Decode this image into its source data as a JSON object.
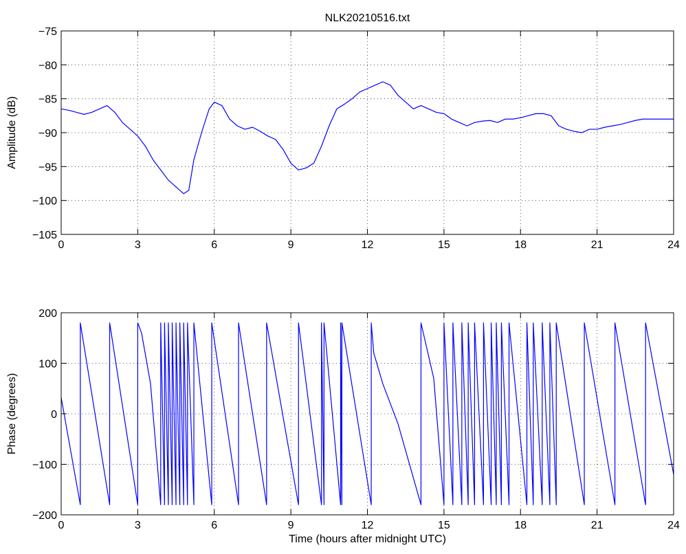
{
  "chart_data": [
    {
      "type": "line",
      "title": "NLK20210516.txt",
      "xlabel": "",
      "ylabel": "Amplitude (dB)",
      "xlim": [
        0,
        24
      ],
      "ylim": [
        -105,
        -75
      ],
      "xticks": [
        0,
        3,
        6,
        9,
        12,
        15,
        18,
        21,
        24
      ],
      "yticks": [
        -75,
        -80,
        -85,
        -90,
        -95,
        -100,
        -105
      ],
      "grid": true,
      "series": [
        {
          "color": "#0000ff",
          "x": [
            0,
            0.3,
            0.6,
            0.9,
            1.2,
            1.5,
            1.8,
            2.1,
            2.4,
            2.7,
            3.0,
            3.3,
            3.6,
            3.9,
            4.2,
            4.5,
            4.8,
            5.0,
            5.2,
            5.5,
            5.8,
            6.0,
            6.3,
            6.6,
            6.9,
            7.2,
            7.5,
            7.8,
            8.1,
            8.4,
            8.7,
            9.0,
            9.3,
            9.6,
            9.9,
            10.2,
            10.5,
            10.8,
            11.1,
            11.4,
            11.7,
            12.0,
            12.3,
            12.6,
            12.9,
            13.2,
            13.5,
            13.8,
            14.1,
            14.4,
            14.7,
            15.0,
            15.3,
            15.6,
            15.9,
            16.2,
            16.5,
            16.8,
            17.1,
            17.4,
            17.7,
            18.0,
            18.3,
            18.6,
            18.9,
            19.2,
            19.5,
            19.8,
            20.1,
            20.4,
            20.7,
            21.0,
            21.3,
            21.6,
            21.9,
            22.2,
            22.5,
            22.8,
            23.1,
            23.4,
            23.7,
            24.0
          ],
          "y": [
            -86.5,
            -86.7,
            -87.0,
            -87.3,
            -87.0,
            -86.5,
            -86.0,
            -87.0,
            -88.5,
            -89.5,
            -90.5,
            -92.0,
            -94.0,
            -95.5,
            -97.0,
            -98.0,
            -99.0,
            -98.5,
            -94.0,
            -90.0,
            -86.5,
            -85.5,
            -86.0,
            -88.0,
            -89.0,
            -89.5,
            -89.2,
            -89.8,
            -90.5,
            -91.0,
            -92.5,
            -94.5,
            -95.5,
            -95.2,
            -94.5,
            -92.0,
            -89.0,
            -86.5,
            -85.8,
            -85.0,
            -84.0,
            -83.5,
            -83.0,
            -82.5,
            -83.0,
            -84.5,
            -85.5,
            -86.5,
            -86.0,
            -86.5,
            -87.0,
            -87.2,
            -88.0,
            -88.5,
            -89.0,
            -88.5,
            -88.3,
            -88.2,
            -88.5,
            -88.0,
            -88.0,
            -87.8,
            -87.5,
            -87.2,
            -87.2,
            -87.5,
            -89.0,
            -89.5,
            -89.8,
            -90.0,
            -89.5,
            -89.5,
            -89.2,
            -89.0,
            -88.8,
            -88.5,
            -88.2,
            -88.0,
            -88.0,
            -88.0,
            -88.0,
            -88.0
          ]
        }
      ]
    },
    {
      "type": "line",
      "title": "",
      "xlabel": "Time (hours after midnight UTC)",
      "ylabel": "Phase (degrees)",
      "xlim": [
        0,
        24
      ],
      "ylim": [
        -200,
        200
      ],
      "xticks": [
        0,
        3,
        6,
        9,
        12,
        15,
        18,
        21,
        24
      ],
      "yticks": [
        200,
        100,
        0,
        -100,
        -200
      ],
      "grid": true,
      "series": [
        {
          "color": "#0000ff",
          "x": [
            0,
            0.75,
            0.75,
            1.9,
            1.9,
            3.0,
            3.0,
            3.15,
            3.5,
            3.9,
            3.9,
            4.05,
            4.05,
            4.2,
            4.2,
            4.35,
            4.35,
            4.5,
            4.5,
            4.65,
            4.65,
            4.8,
            4.8,
            4.95,
            4.95,
            5.2,
            5.2,
            5.9,
            5.9,
            6.95,
            6.95,
            8.05,
            8.05,
            9.3,
            9.3,
            10.2,
            10.2,
            10.3,
            10.3,
            10.95,
            10.95,
            11.0,
            11.0,
            12.15,
            12.15,
            12.25,
            12.6,
            13.2,
            14.1,
            14.1,
            14.6,
            15.0,
            15.0,
            15.35,
            15.35,
            15.7,
            15.7,
            15.95,
            15.95,
            16.2,
            16.2,
            16.55,
            16.55,
            16.85,
            16.85,
            17.05,
            17.05,
            17.25,
            17.25,
            17.55,
            17.55,
            18.25,
            18.25,
            18.5,
            18.5,
            18.85,
            18.85,
            19.15,
            19.15,
            19.4,
            19.4,
            20.5,
            20.5,
            21.7,
            21.7,
            22.9,
            22.9,
            24.0
          ],
          "y": [
            32,
            -180,
            180,
            -180,
            180,
            -180,
            180,
            160,
            60,
            -180,
            180,
            -180,
            180,
            -180,
            180,
            -180,
            180,
            -180,
            180,
            -180,
            180,
            -180,
            180,
            -180,
            180,
            -180,
            180,
            -180,
            180,
            -180,
            180,
            -180,
            180,
            -180,
            180,
            -180,
            180,
            -180,
            180,
            -180,
            180,
            -180,
            180,
            -180,
            180,
            120,
            60,
            -20,
            -180,
            180,
            70,
            -180,
            180,
            -180,
            180,
            -180,
            180,
            -180,
            180,
            -180,
            180,
            -180,
            180,
            -180,
            180,
            -180,
            180,
            -180,
            180,
            -180,
            180,
            -180,
            180,
            -180,
            180,
            -180,
            180,
            -180,
            180,
            -180,
            180,
            -180,
            180,
            -180,
            180,
            -180,
            180,
            -120
          ]
        }
      ]
    }
  ]
}
